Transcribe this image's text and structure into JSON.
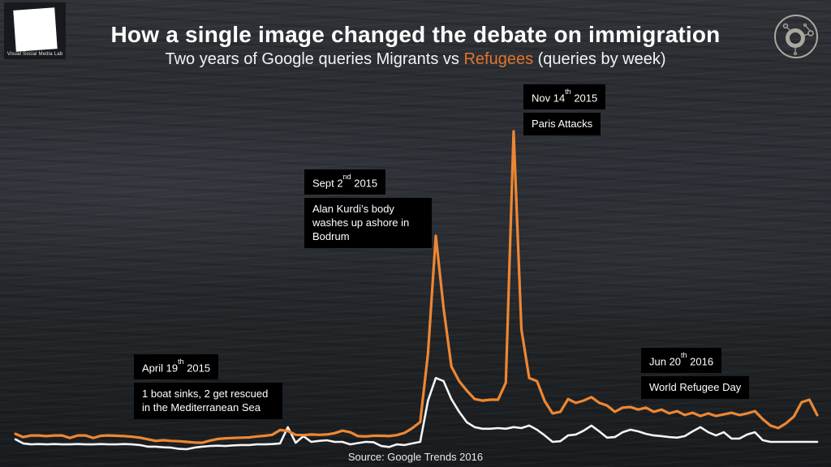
{
  "header": {
    "logo_text": "Visual Social Media Lab",
    "title": "How a single image changed the debate on immigration",
    "subtitle_prefix": "Two years of Google queries Migrants vs ",
    "subtitle_highlight": "Refugees",
    "subtitle_suffix": " (queries by week)"
  },
  "footer": {
    "source": "Source: Google Trends 2016"
  },
  "colors": {
    "refugees_orange": "#ED8733",
    "subtitle_orange": "#E0752C",
    "migrants_white": "#F5F5F5",
    "annotation_bg": "#000000",
    "dial_icon": "#CBC6B9"
  },
  "chart_data": {
    "type": "line",
    "title": "How a single image changed the debate on immigration",
    "subtitle": "Two years of Google queries Migrants vs Refugees (queries by week)",
    "x_unit": "week",
    "x_span_weeks": 104,
    "ylim": [
      0,
      100
    ],
    "grid": false,
    "legend_position": "none (series named in subtitle)",
    "value_scale": "Google Trends relative search interest (0-100)",
    "series": [
      {
        "name": "Migrants",
        "color": "#F5F5F5",
        "values": [
          3.6,
          2.3,
          2.0,
          2.1,
          2.0,
          2.1,
          2.0,
          2.0,
          2.1,
          2.0,
          2.0,
          2.1,
          2.0,
          2.0,
          2.1,
          2.0,
          1.8,
          1.3,
          1.3,
          1.1,
          1.0,
          0.6,
          0.5,
          1.0,
          1.3,
          1.5,
          1.6,
          1.5,
          1.7,
          1.8,
          1.8,
          2.0,
          2.0,
          2.1,
          2.3,
          7.4,
          2.5,
          4.6,
          2.8,
          3.1,
          3.3,
          2.8,
          2.8,
          2.0,
          2.4,
          2.8,
          2.7,
          1.5,
          1.2,
          2.0,
          1.8,
          2.3,
          2.8,
          15.7,
          22.8,
          21.8,
          16.2,
          12.2,
          8.9,
          7.4,
          6.9,
          6.9,
          7.1,
          6.9,
          7.4,
          7.1,
          7.9,
          6.6,
          4.8,
          2.8,
          3.0,
          4.8,
          5.1,
          6.3,
          7.9,
          6.1,
          4.1,
          4.3,
          5.8,
          6.6,
          6.1,
          5.3,
          4.8,
          4.6,
          4.3,
          4.1,
          4.6,
          6.1,
          7.4,
          5.8,
          4.8,
          5.8,
          3.8,
          3.8,
          5.1,
          5.8,
          3.3,
          2.8,
          2.8,
          2.8,
          2.8,
          2.8,
          2.8,
          2.8
        ]
      },
      {
        "name": "Refugees",
        "color": "#ED8733",
        "values": [
          5.3,
          4.3,
          4.8,
          4.8,
          4.6,
          4.8,
          4.8,
          4.0,
          4.8,
          4.8,
          4.0,
          4.7,
          4.8,
          4.7,
          4.6,
          4.4,
          4.1,
          3.6,
          3.1,
          3.3,
          3.1,
          3.0,
          2.8,
          2.6,
          2.5,
          3.2,
          3.7,
          3.9,
          4.0,
          4.1,
          4.2,
          4.5,
          4.7,
          5.0,
          6.5,
          6.2,
          5.0,
          4.9,
          5.1,
          5.0,
          5.1,
          5.5,
          6.3,
          5.8,
          4.6,
          4.5,
          4.7,
          4.7,
          4.6,
          4.9,
          5.6,
          7.1,
          9.0,
          30.5,
          67.3,
          44.7,
          26.4,
          21.8,
          18.8,
          16.2,
          15.7,
          16.0,
          16.0,
          21.3,
          100,
          38.0,
          22.8,
          21.8,
          15.5,
          11.7,
          12.2,
          16.2,
          15.0,
          15.7,
          16.8,
          15.0,
          14.2,
          12.2,
          13.5,
          13.7,
          12.9,
          13.5,
          12.2,
          12.9,
          11.7,
          12.4,
          11.2,
          11.9,
          10.9,
          11.7,
          10.9,
          11.4,
          11.9,
          11.2,
          11.7,
          12.4,
          9.9,
          7.9,
          7.1,
          8.6,
          10.7,
          15.2,
          16.0,
          11.2
        ]
      }
    ],
    "annotations": [
      {
        "id": "april",
        "date_main": "April 19",
        "date_sup": "th",
        "date_year": " 2015",
        "label": "1 boat sinks, 2 get rescued in the Mediterranean Sea"
      },
      {
        "id": "sept",
        "date_main": "Sept 2",
        "date_sup": "nd",
        "date_year": " 2015",
        "label": "Alan Kurdi’s body washes up ashore in Bodrum"
      },
      {
        "id": "nov",
        "date_main": "Nov 14",
        "date_sup": "th",
        "date_year": " 2015",
        "label": "Paris Attacks"
      },
      {
        "id": "jun",
        "date_main": "Jun 20",
        "date_sup": "th",
        "date_year": " 2016",
        "label": "World Refugee Day"
      }
    ]
  }
}
